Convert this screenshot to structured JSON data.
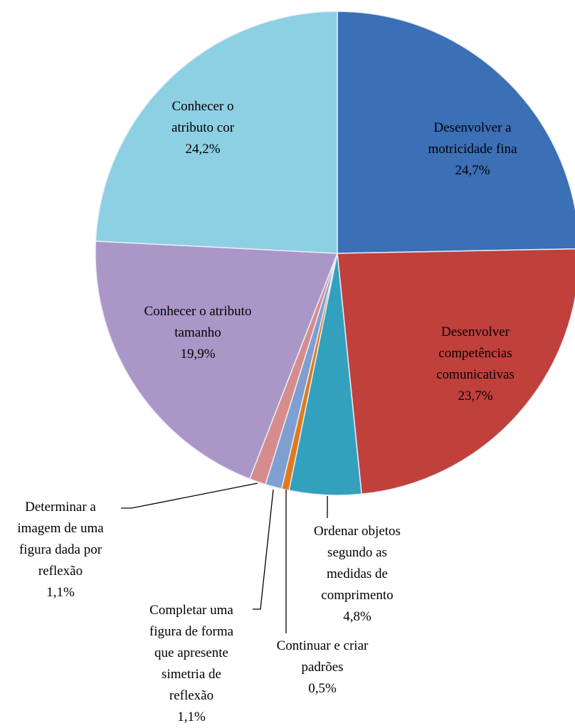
{
  "chart_data": {
    "type": "pie",
    "categories": [
      "Desenvolver a motricidade fina",
      "Desenvolver competências comunicativas",
      "Ordenar objetos segundo as medidas de comprimento",
      "Continuar e criar padrões",
      "Completar uma figura de forma que apresente simetria de reflexão",
      "Determinar a imagem de uma figura dada por reflexão",
      "Conhecer o atributo tamanho",
      "Conhecer o atributo cor"
    ],
    "values": [
      24.7,
      23.7,
      4.8,
      0.5,
      1.1,
      1.1,
      19.9,
      24.2
    ],
    "value_labels": [
      "24,7%",
      "23,7%",
      "4,8%",
      "0,5%",
      "1,1%",
      "1,1%",
      "19,9%",
      "24,2%"
    ],
    "colors": [
      "#3b6fb6",
      "#c0403c",
      "#33a0bd",
      "#e07a1e",
      "#7f9fd2",
      "#d68c8c",
      "#ab96c8",
      "#8dcfe3"
    ]
  }
}
